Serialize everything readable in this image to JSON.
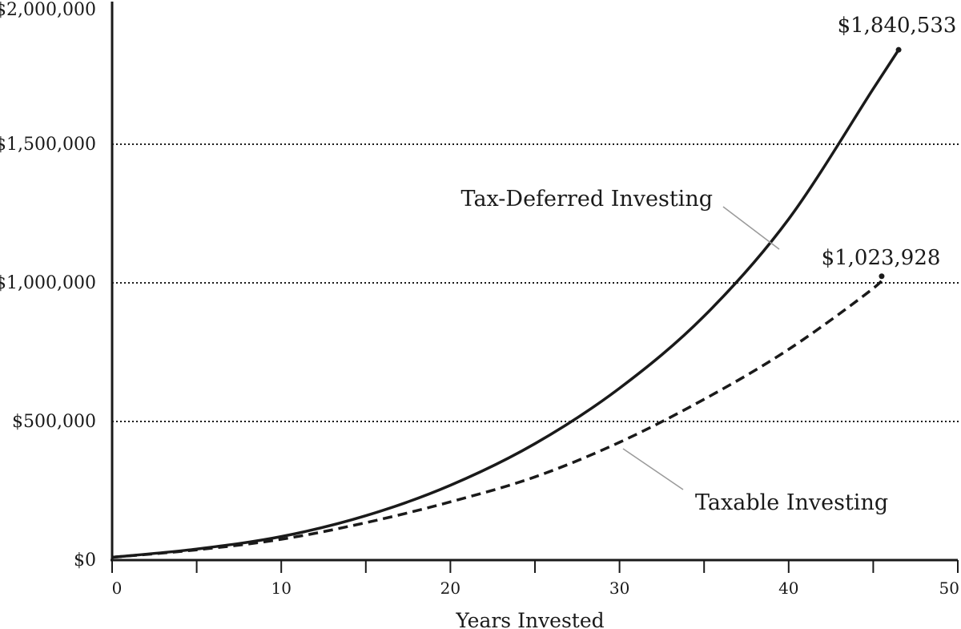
{
  "chart_data": {
    "type": "line",
    "title": "",
    "xlabel": "Years Invested",
    "ylabel": "",
    "xlim": [
      0,
      50
    ],
    "ylim": [
      0,
      2000000
    ],
    "x_ticks": [
      0,
      10,
      20,
      30,
      40,
      50
    ],
    "x_tick_labels": [
      "0",
      "10",
      "20",
      "30",
      "40",
      "50"
    ],
    "y_ticks": [
      0,
      500000,
      1000000,
      1500000,
      2000000
    ],
    "y_tick_labels": [
      "$0",
      "$500,000",
      "$1,000,000",
      "$1,500,000",
      "$2,000,000"
    ],
    "grid": "horizontal dotted",
    "series": [
      {
        "name": "Tax-Deferred Investing",
        "style": "solid",
        "x": [
          0,
          5,
          10,
          15,
          20,
          25,
          30,
          35,
          40,
          45,
          46.5
        ],
        "y": [
          10000,
          40000,
          85000,
          160000,
          270000,
          420000,
          620000,
          880000,
          1230000,
          1700000,
          1840533
        ],
        "end_label": "$1,840,533"
      },
      {
        "name": "Taxable Investing",
        "style": "dashed",
        "x": [
          0,
          5,
          10,
          15,
          20,
          25,
          30,
          35,
          40,
          45,
          45.5
        ],
        "y": [
          10000,
          37000,
          75000,
          135000,
          210000,
          300000,
          425000,
          580000,
          760000,
          980000,
          1023928
        ],
        "end_label": "$1,023,928"
      }
    ]
  },
  "colors": {
    "line": "#1a1a1a",
    "leader": "#9a9a9a"
  }
}
